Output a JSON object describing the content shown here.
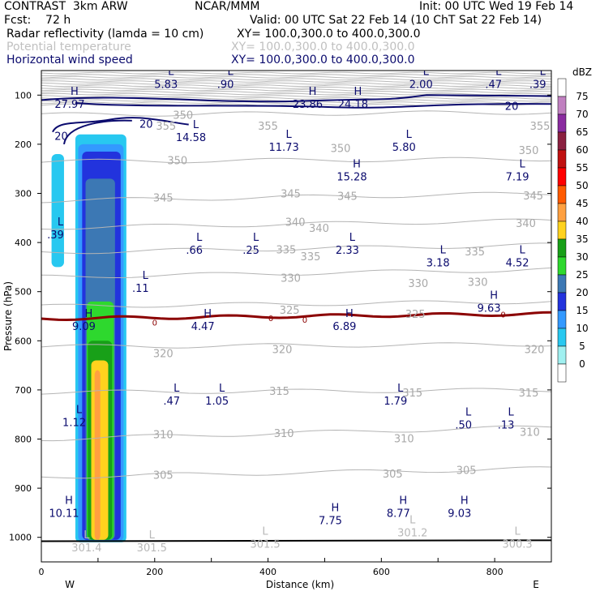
{
  "header": {
    "title": "CONTRAST  3km ARW",
    "org": "NCAR/MMM",
    "init": "Init: 00 UTC Wed 19 Feb 14",
    "fcst": "Fcst:    72 h",
    "valid": "Valid: 00 UTC Sat 22 Feb 14 (10 ChT Sat 22 Feb 14)",
    "fields": [
      {
        "name": "Radar reflectivity (lamda = 10 cm)",
        "xy": "XY= 100.0,300.0 to 400.0,300.0",
        "color": "#000000"
      },
      {
        "name": "Potential temperature",
        "xy": "XY= 100.0,300.0 to 400.0,300.0",
        "color": "#c0c0c0"
      },
      {
        "name": "Horizontal wind speed",
        "xy": "XY= 100.0,300.0 to 400.0,300.0",
        "color": "#0b0b6e"
      }
    ]
  },
  "chart_data": {
    "type": "heatmap",
    "title": "Cross section: Radar reflectivity, Potential temperature, Horizontal wind speed",
    "xlabel": "Distance (km)",
    "ylabel": "Pressure (hPa)",
    "xlim": [
      0,
      900
    ],
    "ylim": [
      1050,
      50
    ],
    "x_ticks": [
      0,
      200,
      400,
      600,
      800
    ],
    "y_ticks": [
      100,
      200,
      300,
      400,
      500,
      600,
      700,
      800,
      900,
      1000
    ],
    "x_end_labels": {
      "left": "W",
      "right": "E"
    },
    "colorbar": {
      "label": "dBZ",
      "levels": [
        {
          "value": "75",
          "color": "#ffffff"
        },
        {
          "value": "70",
          "color": "#c080c0"
        },
        {
          "value": "65",
          "color": "#8a2ba0"
        },
        {
          "value": "60",
          "color": "#8b2040"
        },
        {
          "value": "55",
          "color": "#c01010"
        },
        {
          "value": "50",
          "color": "#ff0000"
        },
        {
          "value": "45",
          "color": "#ff5a00"
        },
        {
          "value": "40",
          "color": "#ffa040"
        },
        {
          "value": "35",
          "color": "#ffd21e"
        },
        {
          "value": "30",
          "color": "#18a018"
        },
        {
          "value": "25",
          "color": "#2ed82e"
        },
        {
          "value": "20",
          "color": "#3c78b4"
        },
        {
          "value": "15",
          "color": "#2233dd"
        },
        {
          "value": "10",
          "color": "#3399ff"
        },
        {
          "value": "5",
          "color": "#28c8f0"
        },
        {
          "value": "0",
          "color": "#a0f0f0"
        },
        {
          "value": "",
          "color": "#ffffff"
        }
      ]
    },
    "reflectivity_cells": [
      {
        "dbz": 5,
        "x0": 18,
        "x1": 40,
        "p_top": 220,
        "p_bot": 450
      },
      {
        "dbz": 5,
        "x0": 60,
        "x1": 150,
        "p_top": 180,
        "p_bot": 1010
      },
      {
        "dbz": 10,
        "x0": 65,
        "x1": 145,
        "p_top": 200,
        "p_bot": 1008
      },
      {
        "dbz": 15,
        "x0": 72,
        "x1": 140,
        "p_top": 215,
        "p_bot": 1005
      },
      {
        "dbz": 20,
        "x0": 78,
        "x1": 130,
        "p_top": 270,
        "p_bot": 1005
      },
      {
        "dbz": 25,
        "x0": 80,
        "x1": 128,
        "p_top": 520,
        "p_bot": 1005
      },
      {
        "dbz": 30,
        "x0": 82,
        "x1": 125,
        "p_top": 600,
        "p_bot": 1005
      },
      {
        "dbz": 35,
        "x0": 88,
        "x1": 118,
        "p_top": 640,
        "p_bot": 1005
      },
      {
        "dbz": 40,
        "x0": 94,
        "x1": 104,
        "p_top": 660,
        "p_bot": 1005
      }
    ],
    "theta_levels": [
      {
        "value": "305",
        "p_left": 877,
        "p_right": 860
      },
      {
        "value": "310",
        "p_left": 800,
        "p_right": 775
      },
      {
        "value": "315",
        "p_left": 705,
        "p_right": 700
      },
      {
        "value": "320",
        "p_left": 612,
        "p_right": 607
      },
      {
        "value": "325",
        "p_left": 530,
        "p_right": 520
      },
      {
        "value": "330",
        "p_left": 470,
        "p_right": 455
      },
      {
        "value": "335",
        "p_left": 420,
        "p_right": 405
      },
      {
        "value": "340",
        "p_left": 370,
        "p_right": 355
      },
      {
        "value": "345",
        "p_left": 315,
        "p_right": 300
      },
      {
        "value": "350",
        "p_left": 235,
        "p_right": 230
      },
      {
        "value": "355",
        "p_left": 140,
        "p_right": 135
      }
    ],
    "theta_labels": [
      {
        "text": "350",
        "x": 250,
        "p": 140
      },
      {
        "text": "355",
        "x": 220,
        "p": 162
      },
      {
        "text": "355",
        "x": 400,
        "p": 162
      },
      {
        "text": "355",
        "x": 880,
        "p": 162
      },
      {
        "text": "350",
        "x": 240,
        "p": 232
      },
      {
        "text": "350",
        "x": 528,
        "p": 208
      },
      {
        "text": "350",
        "x": 860,
        "p": 212
      },
      {
        "text": "345",
        "x": 215,
        "p": 308
      },
      {
        "text": "345",
        "x": 440,
        "p": 300
      },
      {
        "text": "345",
        "x": 540,
        "p": 305
      },
      {
        "text": "345",
        "x": 868,
        "p": 304
      },
      {
        "text": "340",
        "x": 448,
        "p": 358
      },
      {
        "text": "340",
        "x": 490,
        "p": 370
      },
      {
        "text": "340",
        "x": 855,
        "p": 360
      },
      {
        "text": "335",
        "x": 432,
        "p": 414
      },
      {
        "text": "335",
        "x": 475,
        "p": 428
      },
      {
        "text": "335",
        "x": 765,
        "p": 418
      },
      {
        "text": "330",
        "x": 440,
        "p": 472
      },
      {
        "text": "330",
        "x": 665,
        "p": 482
      },
      {
        "text": "330",
        "x": 770,
        "p": 480
      },
      {
        "text": "325",
        "x": 438,
        "p": 537
      },
      {
        "text": "325",
        "x": 660,
        "p": 545
      },
      {
        "text": "320",
        "x": 215,
        "p": 625
      },
      {
        "text": "320",
        "x": 425,
        "p": 617
      },
      {
        "text": "320",
        "x": 870,
        "p": 617
      },
      {
        "text": "315",
        "x": 420,
        "p": 702
      },
      {
        "text": "315",
        "x": 655,
        "p": 705
      },
      {
        "text": "315",
        "x": 860,
        "p": 705
      },
      {
        "text": "310",
        "x": 215,
        "p": 790
      },
      {
        "text": "310",
        "x": 428,
        "p": 788
      },
      {
        "text": "310",
        "x": 640,
        "p": 798
      },
      {
        "text": "310",
        "x": 862,
        "p": 785
      },
      {
        "text": "305",
        "x": 215,
        "p": 873
      },
      {
        "text": "305",
        "x": 620,
        "p": 870
      },
      {
        "text": "305",
        "x": 750,
        "p": 863
      }
    ],
    "theta_hl_labels": [
      {
        "kind": "L",
        "value": "301.4",
        "x": 80,
        "p": 1015
      },
      {
        "kind": "L",
        "value": "301.5",
        "x": 195,
        "p": 1015
      },
      {
        "kind": "L",
        "value": "301.5",
        "x": 395,
        "p": 1008
      },
      {
        "kind": "L",
        "value": "301.2",
        "x": 655,
        "p": 985
      },
      {
        "kind": "L",
        "value": "300.3",
        "x": 840,
        "p": 1008
      }
    ],
    "zero_isotherm_label": "0",
    "wind_hl_labels": [
      {
        "kind": "L",
        "value": "5.83",
        "x": 220,
        "p": 72
      },
      {
        "kind": "L",
        "value": ".90",
        "x": 325,
        "p": 72
      },
      {
        "kind": "L",
        "value": "2.00",
        "x": 670,
        "p": 72
      },
      {
        "kind": "L",
        "value": ".47",
        "x": 798,
        "p": 72
      },
      {
        "kind": "L",
        "value": ".39",
        "x": 876,
        "p": 72
      },
      {
        "kind": "H",
        "value": "27.97",
        "x": 50,
        "p": 113
      },
      {
        "kind": "H",
        "value": "23.86",
        "x": 470,
        "p": 113
      },
      {
        "kind": "H",
        "value": "24.18",
        "x": 550,
        "p": 113
      },
      {
        "kind": "L",
        "value": "14.58",
        "x": 264,
        "p": 180
      },
      {
        "kind": "L",
        "value": "11.73",
        "x": 428,
        "p": 200
      },
      {
        "kind": "L",
        "value": "5.80",
        "x": 640,
        "p": 200
      },
      {
        "kind": "H",
        "value": "15.28",
        "x": 548,
        "p": 260
      },
      {
        "kind": "L",
        "value": "7.19",
        "x": 840,
        "p": 260
      },
      {
        "kind": "L",
        "value": ".39",
        "x": 25,
        "p": 378
      },
      {
        "kind": "L",
        "value": ".66",
        "x": 270,
        "p": 410
      },
      {
        "kind": "L",
        "value": ".25",
        "x": 370,
        "p": 410
      },
      {
        "kind": "L",
        "value": "2.33",
        "x": 540,
        "p": 410
      },
      {
        "kind": "L",
        "value": "3.18",
        "x": 700,
        "p": 435
      },
      {
        "kind": "L",
        "value": "4.52",
        "x": 840,
        "p": 435
      },
      {
        "kind": "L",
        "value": ".11",
        "x": 175,
        "p": 487
      },
      {
        "kind": "H",
        "value": "9.63",
        "x": 790,
        "p": 528
      },
      {
        "kind": "H",
        "value": "9.09",
        "x": 75,
        "p": 565
      },
      {
        "kind": "H",
        "value": "4.47",
        "x": 285,
        "p": 565
      },
      {
        "kind": "H",
        "value": "6.89",
        "x": 535,
        "p": 565
      },
      {
        "kind": "L",
        "value": ".47",
        "x": 230,
        "p": 717
      },
      {
        "kind": "L",
        "value": "1.05",
        "x": 310,
        "p": 717
      },
      {
        "kind": "L",
        "value": "1.79",
        "x": 625,
        "p": 717
      },
      {
        "kind": "L",
        "value": "1.12",
        "x": 58,
        "p": 760
      },
      {
        "kind": "L",
        "value": ".50",
        "x": 745,
        "p": 765
      },
      {
        "kind": "L",
        "value": ".13",
        "x": 820,
        "p": 765
      },
      {
        "kind": "H",
        "value": "10.11",
        "x": 40,
        "p": 945
      },
      {
        "kind": "H",
        "value": "7.75",
        "x": 510,
        "p": 960
      },
      {
        "kind": "H",
        "value": "8.77",
        "x": 630,
        "p": 945
      },
      {
        "kind": "H",
        "value": "9.03",
        "x": 738,
        "p": 945
      }
    ],
    "wind_contour_labels": [
      {
        "text": "20",
        "x": 35,
        "p": 183
      },
      {
        "text": "20",
        "x": 185,
        "p": 158
      },
      {
        "text": "20",
        "x": 830,
        "p": 122
      }
    ]
  }
}
